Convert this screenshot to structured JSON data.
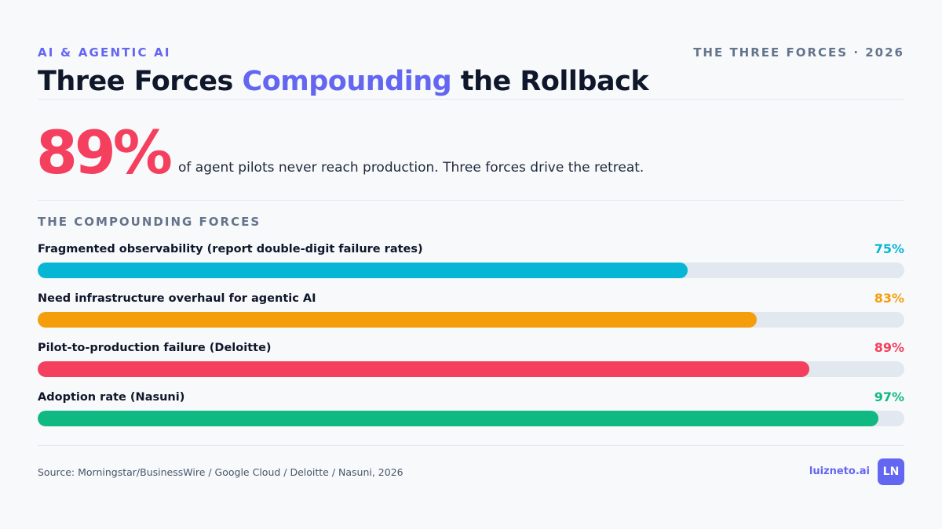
{
  "header": {
    "eyebrow": "AI & AGENTIC AI",
    "series_tag": "THE THREE FORCES · 2026",
    "title_before": "Three Forces ",
    "title_accent": "Compounding",
    "title_after": " the Rollback"
  },
  "hero": {
    "stat": "89%",
    "description": "of agent pilots never reach production. Three forces drive the retreat."
  },
  "section_label": "THE COMPOUNDING FORCES",
  "chart_data": {
    "type": "bar",
    "orientation": "horizontal",
    "title": "",
    "xlabel": "",
    "ylabel": "",
    "xlim": [
      0,
      100
    ],
    "categories": [
      "Fragmented observability (report double-digit failure rates)",
      "Need infrastructure overhaul for agentic AI",
      "Pilot-to-production failure (Deloitte)",
      "Adoption rate (Nasuni)"
    ],
    "values": [
      75,
      83,
      89,
      97
    ],
    "value_labels": [
      "75%",
      "83%",
      "89%",
      "97%"
    ],
    "colors": [
      "#06b6d4",
      "#f59e0b",
      "#f43f5e",
      "#10b981"
    ]
  },
  "footer": {
    "source": "Source: Morningstar/BusinessWire / Google Cloud / Deloitte / Nasuni, 2026",
    "brand": "luizneto.ai",
    "logo_text": "LN"
  }
}
